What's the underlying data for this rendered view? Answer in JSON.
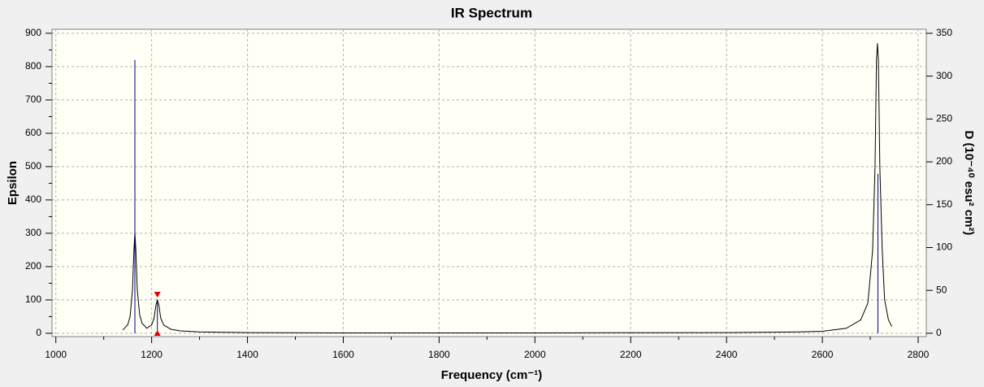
{
  "chart_data": {
    "type": "line",
    "title": "IR Spectrum",
    "xlabel": "Frequency (cm⁻¹)",
    "ylabel": "Epsilon",
    "y2label": "D (10⁻⁴⁰ esu² cm²)",
    "xlim": [
      992,
      2817
    ],
    "ylim": [
      -10,
      912
    ],
    "y2lim": [
      -3.9,
      354.7
    ],
    "xticks": [
      1000,
      1200,
      1400,
      1600,
      1800,
      2000,
      2200,
      2400,
      2600,
      2800
    ],
    "xticks_minor": [
      1100,
      1300,
      1500,
      1700,
      1900,
      2100,
      2300,
      2500,
      2700
    ],
    "yticks": [
      0,
      100,
      200,
      300,
      400,
      500,
      600,
      700,
      800,
      900
    ],
    "yticks_minor": [
      50,
      150,
      250,
      350,
      450,
      550,
      650,
      750,
      850
    ],
    "y2ticks": [
      0,
      50,
      100,
      150,
      200,
      250,
      300,
      350
    ],
    "grid": true,
    "selected_x": 1212,
    "series": [
      {
        "name": "Epsilon",
        "color": "#000000",
        "axis": "y",
        "x": [
          1140,
          1150,
          1155,
          1160,
          1163,
          1165,
          1167,
          1170,
          1175,
          1180,
          1190,
          1200,
          1205,
          1209,
          1212,
          1215,
          1219,
          1225,
          1240,
          1260,
          1300,
          1400,
          1600,
          2000,
          2400,
          2550,
          2600,
          2650,
          2680,
          2695,
          2705,
          2710,
          2713,
          2715,
          2717,
          2720,
          2725,
          2730,
          2738,
          2745
        ],
        "values": [
          10,
          25,
          50,
          130,
          250,
          302,
          250,
          130,
          55,
          30,
          15,
          25,
          45,
          85,
          100,
          85,
          45,
          25,
          12,
          7,
          4,
          2,
          1,
          1,
          2,
          4,
          6,
          15,
          40,
          90,
          250,
          500,
          820,
          870,
          820,
          500,
          250,
          100,
          40,
          20
        ]
      },
      {
        "name": "D",
        "color": "#000080",
        "axis": "y2",
        "type": "stick",
        "x": [
          1165,
          1212,
          2716
        ],
        "values": [
          319,
          38,
          186
        ]
      }
    ]
  }
}
